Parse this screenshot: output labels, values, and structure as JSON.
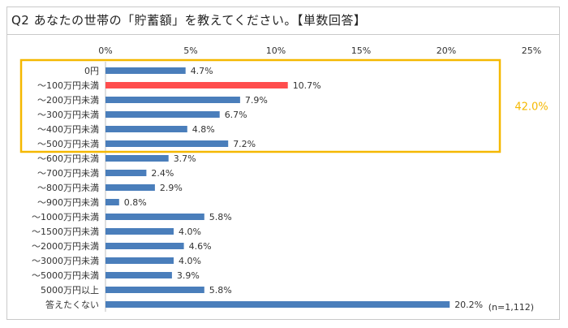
{
  "title": "Q2 あなたの世帯の「貯蓄額」を教えてください。【単数回答】",
  "chart_data": {
    "type": "bar",
    "orientation": "horizontal",
    "xlim": [
      0,
      25
    ],
    "ticks": [
      "0%",
      "5%",
      "10%",
      "15%",
      "20%",
      "25%"
    ],
    "tick_values": [
      0,
      5,
      10,
      15,
      20,
      25
    ],
    "categories": [
      "0円",
      "～100万円未満",
      "～200万円未満",
      "～300万円未満",
      "～400万円未満",
      "～500万円未満",
      "～600万円未満",
      "～700万円未満",
      "～800万円未満",
      "～900万円未満",
      "～1000万円未満",
      "～1500万円未満",
      "～2000万円未満",
      "～3000万円未満",
      "～5000万円未満",
      "5000万円以上",
      "答えたくない"
    ],
    "values": [
      4.7,
      10.7,
      7.9,
      6.7,
      4.8,
      7.2,
      3.7,
      2.4,
      2.9,
      0.8,
      5.8,
      4.0,
      4.6,
      4.0,
      3.9,
      5.8,
      20.2
    ],
    "value_labels": [
      "4.7%",
      "10.7%",
      "7.9%",
      "6.7%",
      "4.8%",
      "7.2%",
      "3.7%",
      "2.4%",
      "2.9%",
      "0.8%",
      "5.8%",
      "4.0%",
      "4.6%",
      "4.0%",
      "3.9%",
      "5.8%",
      "20.2%"
    ],
    "highlight_index": 1,
    "bar_color": "#4a7ebb",
    "highlight_color": "#ff4d4d",
    "bracket": {
      "from_index": 0,
      "to_index": 5,
      "label": "42.0%",
      "color": "#f5b800"
    },
    "note": "(n=1,112)",
    "grid": false
  }
}
